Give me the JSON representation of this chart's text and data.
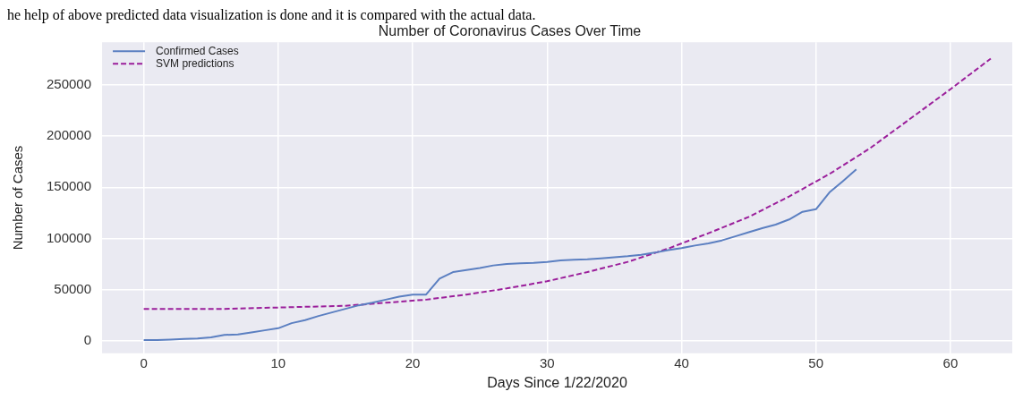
{
  "chart_data": {
    "type": "line",
    "title": "Number of Coronavirus Cases Over Time",
    "xlabel": "Days Since 1/22/2020",
    "ylabel": "Number of Cases",
    "annotations": [
      "he help of above predicted data visualization is done and it is compared with the actual data."
    ],
    "xlim": [
      -3.1,
      64.6
    ],
    "xticks": [
      0,
      10,
      20,
      30,
      40,
      50,
      60
    ],
    "ylim": [
      -12500,
      292000
    ],
    "yticks": [
      0,
      50000,
      100000,
      150000,
      200000,
      250000
    ],
    "grid": true,
    "legend": "top left",
    "marker": "none",
    "series": [
      {
        "name": "Confirmed Cases",
        "color": "#5b7fc1",
        "line_style": "solid",
        "x": [
          0,
          1,
          2,
          3,
          4,
          5,
          6,
          7,
          8,
          9,
          10,
          11,
          12,
          13,
          14,
          15,
          16,
          17,
          18,
          19,
          20,
          21,
          22,
          23,
          24,
          25,
          26,
          27,
          28,
          29,
          30,
          31,
          32,
          33,
          34,
          35,
          36,
          37,
          38,
          39,
          40,
          41,
          42,
          43,
          44,
          45,
          46,
          47,
          48,
          49,
          50,
          51,
          52,
          53
        ],
        "values": [
          500,
          500,
          1000,
          1500,
          2000,
          3000,
          5500,
          6000,
          8000,
          10000,
          12000,
          17000,
          20000,
          24000,
          27500,
          31000,
          34500,
          37000,
          40000,
          43000,
          45000,
          45000,
          60500,
          67000,
          69000,
          71000,
          73500,
          75000,
          75500,
          76000,
          77000,
          78500,
          79000,
          79500,
          80500,
          81500,
          82500,
          84000,
          86000,
          88500,
          90500,
          93000,
          95000,
          98000,
          102000,
          106000,
          110000,
          113500,
          118500,
          126000,
          128500,
          145000,
          156000,
          167500
        ]
      },
      {
        "name": "SVM predictions",
        "color": "#9b1f9b",
        "line_style": "dashed",
        "x": [
          0,
          3,
          6,
          9,
          12,
          15,
          18,
          21,
          24,
          27,
          30,
          33,
          36,
          39,
          42,
          45,
          48,
          51,
          54,
          57,
          60,
          63
        ],
        "values": [
          31000,
          31000,
          31000,
          32000,
          33000,
          34000,
          37000,
          40000,
          45000,
          51000,
          58000,
          67000,
          77000,
          90000,
          105000,
          121000,
          141000,
          163000,
          188000,
          217000,
          246000,
          276000
        ]
      }
    ]
  }
}
